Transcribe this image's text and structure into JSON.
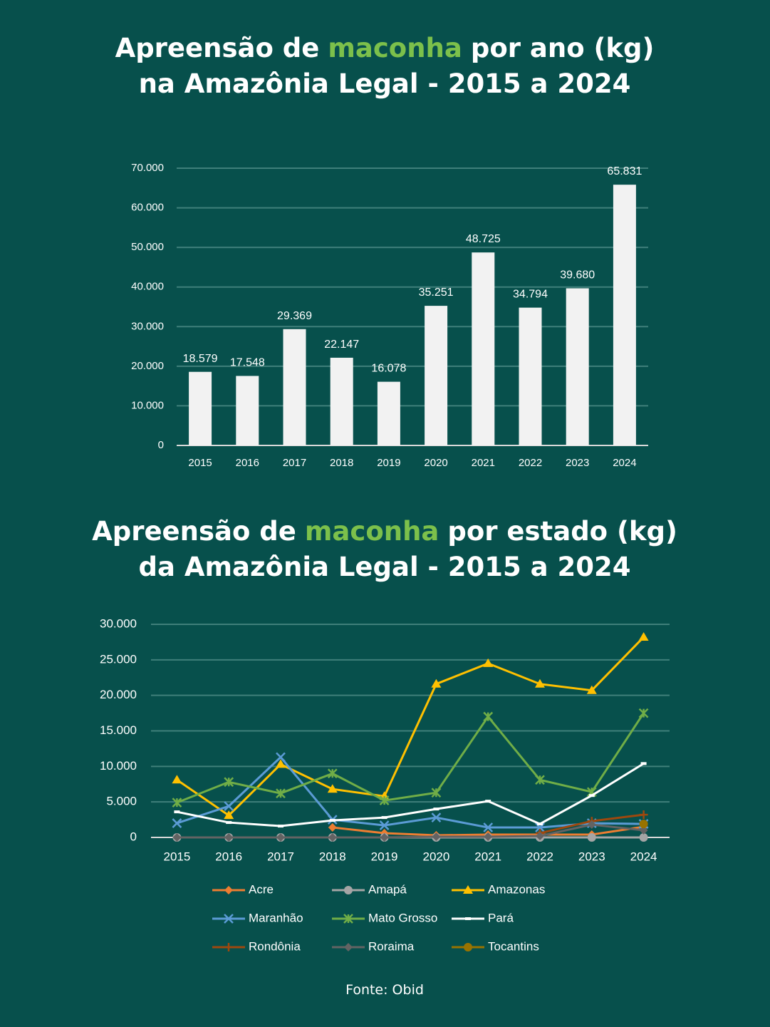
{
  "chart_data": [
    {
      "type": "bar",
      "title": [
        [
          "Apreensão de",
          "maconha",
          "por ano (kg)"
        ],
        [
          "na Amazônia Legal - 2015 a 2024"
        ]
      ],
      "categories": [
        "2015",
        "2016",
        "2017",
        "2018",
        "2019",
        "2020",
        "2021",
        "2022",
        "2023",
        "2024"
      ],
      "values": [
        18579,
        17548,
        29369,
        22147,
        16078,
        35251,
        48725,
        34794,
        39680,
        65831
      ],
      "value_labels": [
        "18.579",
        "17.548",
        "29.369",
        "22.147",
        "16.078",
        "35.251",
        "48.725",
        "34.794",
        "39.680",
        "65.831"
      ],
      "color": "#f2f2f2",
      "ylim": [
        0,
        70000
      ],
      "yticks": [
        0,
        {
          "value": 10000,
          "label": "10.000"
        },
        {
          "value": 20000,
          "label": "20.000"
        },
        {
          "value": 30000,
          "label": "30.000"
        },
        {
          "value": 40000,
          "label": "40.000"
        },
        {
          "value": 50000,
          "label": "50.000"
        },
        {
          "value": 60000,
          "label": "60.000"
        },
        {
          "value": 70000,
          "label": "70.000"
        }
      ],
      "grid": true
    },
    {
      "type": "line",
      "title": [
        [
          "Apreensão de",
          "maconha",
          "por estado (kg)"
        ],
        [
          "da Amazônia Legal - 2015 a 2024"
        ]
      ],
      "categories": [
        "2015",
        "2016",
        "2017",
        "2018",
        "2019",
        "2020",
        "2021",
        "2022",
        "2023",
        "2024"
      ],
      "ylim": [
        0,
        30000
      ],
      "yticks": [
        0,
        {
          "value": 5000,
          "label": "5.000"
        },
        {
          "value": 10000,
          "label": "10.000"
        },
        {
          "value": 15000,
          "label": "15.000"
        },
        {
          "value": 20000,
          "label": "20.000"
        },
        {
          "value": 25000,
          "label": "25.000"
        },
        {
          "value": 30000,
          "label": "30.000"
        }
      ],
      "grid": true,
      "legend": "bottom",
      "series": [
        {
          "name": "Acre",
          "color": "#ed7d31",
          "marker": "diamond",
          "values": [
            null,
            null,
            null,
            1400,
            600,
            300,
            400,
            400,
            400,
            1500
          ]
        },
        {
          "name": "Amapá",
          "color": "#a5a5a5",
          "marker": "circle",
          "values": [
            0,
            0,
            0,
            0,
            0,
            0,
            0,
            0,
            0,
            0
          ]
        },
        {
          "name": "Amazonas",
          "color": "#ffc000",
          "marker": "triangle",
          "values": [
            8100,
            3100,
            10300,
            6800,
            5800,
            21600,
            24500,
            21600,
            20700,
            28200
          ]
        },
        {
          "name": "Maranhão",
          "color": "#5b9bd5",
          "marker": "x",
          "values": [
            2000,
            4400,
            11300,
            2500,
            1700,
            2800,
            1400,
            1400,
            2000,
            1900
          ]
        },
        {
          "name": "Mato Grosso",
          "color": "#70ad47",
          "marker": "star",
          "values": [
            4900,
            7800,
            6200,
            9000,
            5200,
            6300,
            17000,
            8100,
            6400,
            17500
          ]
        },
        {
          "name": "Pará",
          "color": "#ffffff",
          "marker": "dash",
          "values": [
            3600,
            2100,
            1600,
            2400,
            2800,
            4000,
            5100,
            1900,
            5900,
            10400
          ]
        },
        {
          "name": "Rondônia",
          "color": "#9e480e",
          "marker": "plus",
          "values": [
            null,
            null,
            null,
            null,
            null,
            null,
            null,
            600,
            2300,
            3200
          ]
        },
        {
          "name": "Roraima",
          "color": "#636363",
          "marker": "diamond",
          "values": [
            0,
            0,
            0,
            0,
            0,
            100,
            100,
            200,
            1800,
            1000
          ]
        },
        {
          "name": "Tocantins",
          "color": "#997300",
          "marker": "circle",
          "values": [
            null,
            null,
            null,
            null,
            null,
            null,
            null,
            null,
            null,
            1900
          ]
        }
      ]
    }
  ],
  "source": "Fonte: Obid"
}
